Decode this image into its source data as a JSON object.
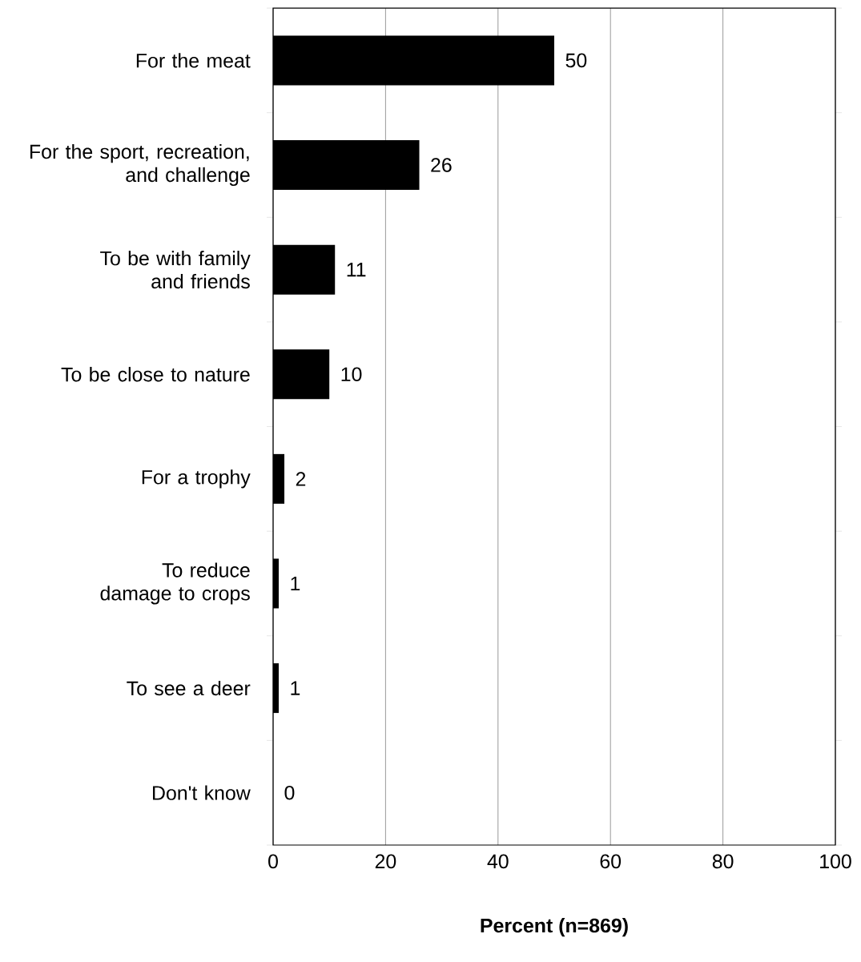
{
  "chart_data": {
    "type": "bar",
    "orientation": "horizontal",
    "categories": [
      "For the meat",
      "For the sport, recreation, and challenge",
      "To be with family and friends",
      "To be close to nature",
      "For a trophy",
      "To reduce damage to crops",
      "To see a deer",
      "Don't know"
    ],
    "values": [
      50,
      26,
      11,
      10,
      2,
      1,
      1,
      0
    ],
    "data_labels": true,
    "color": "#000000",
    "xlim": [
      0,
      100
    ],
    "xticks": [
      0,
      20,
      40,
      60,
      80,
      100
    ],
    "xlabel": "Percent (n=869)",
    "grid": "x"
  }
}
